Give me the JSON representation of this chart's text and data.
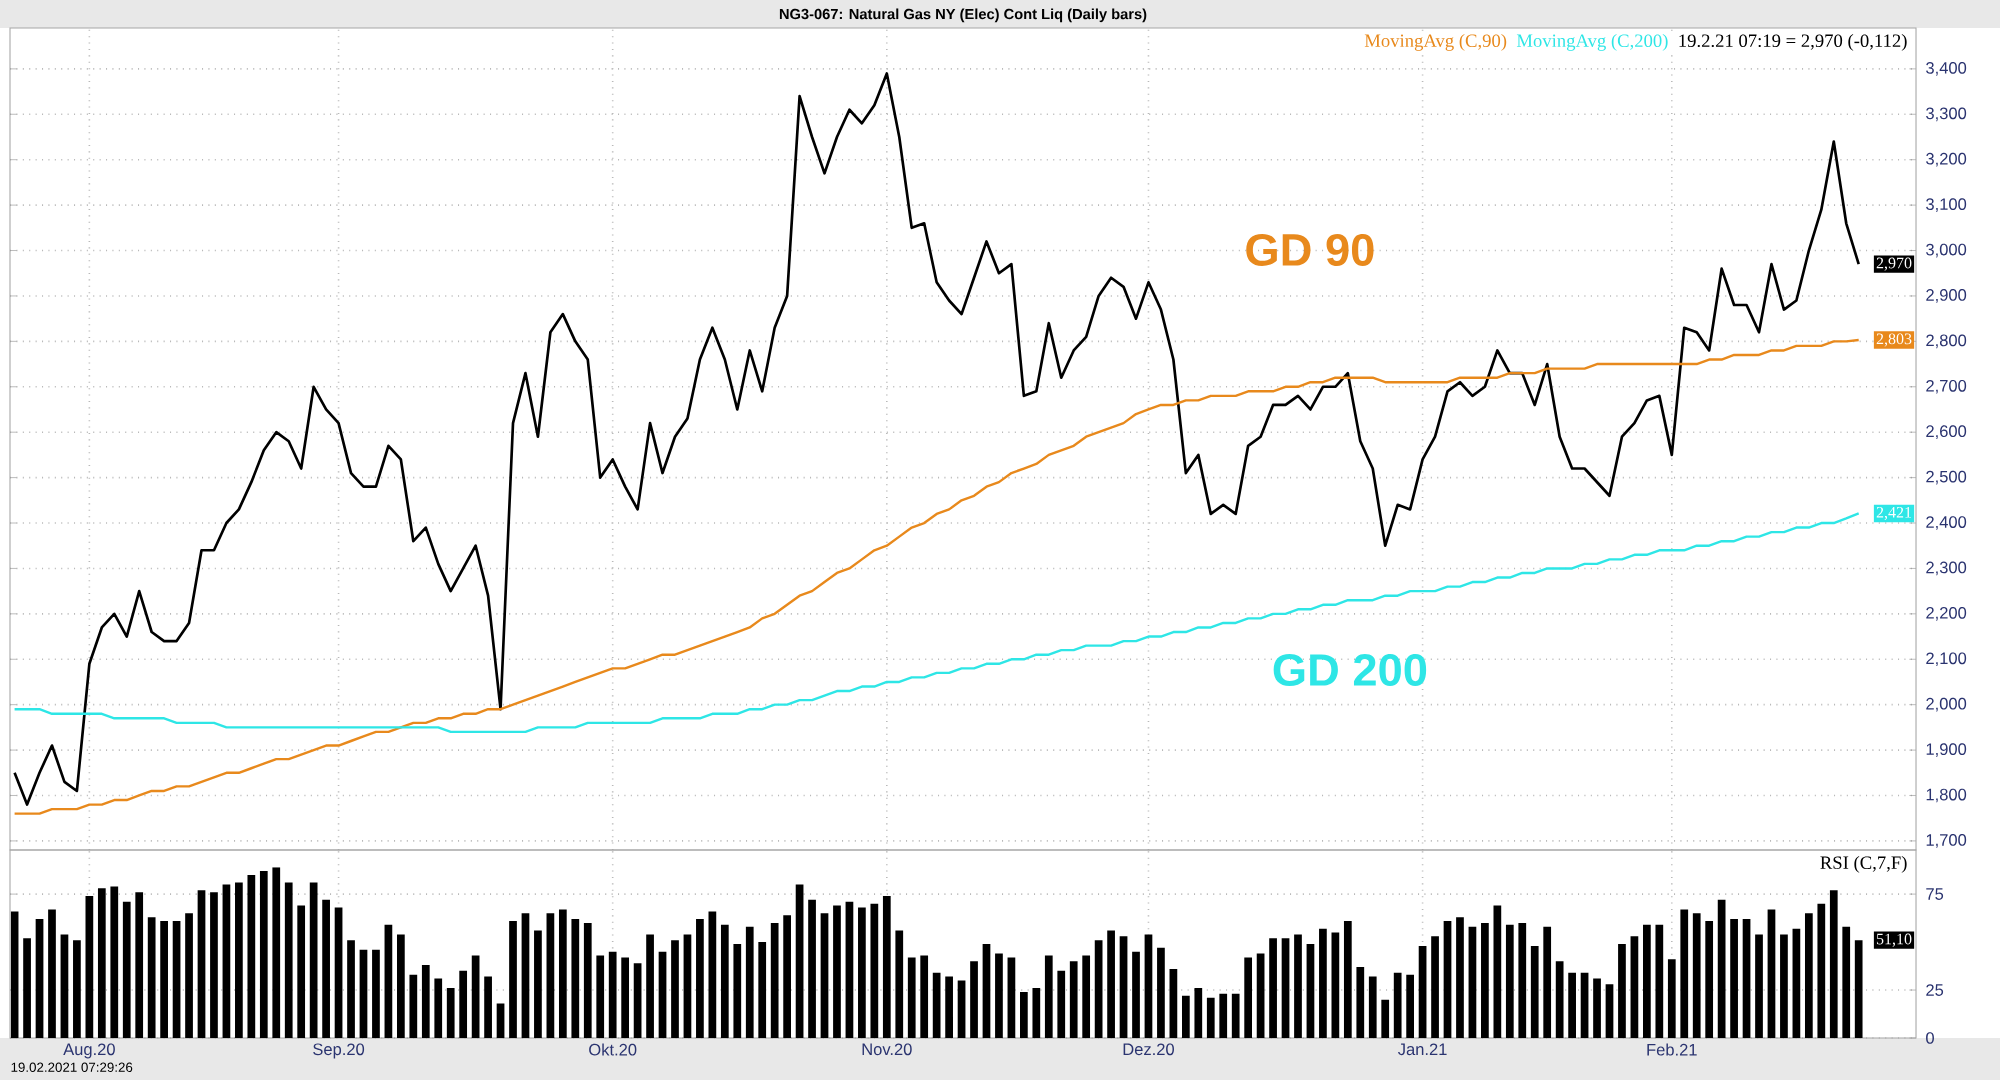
{
  "chart_data": [
    {
      "type": "line",
      "title": "NG3-067: Natural Gas NY (Elec) Cont Liq (Daily bars)",
      "categories": [
        null,
        null,
        null,
        null,
        null,
        null,
        null,
        null,
        null,
        null,
        null,
        null,
        null,
        null,
        null,
        null,
        null,
        null,
        null,
        null,
        null,
        null,
        null,
        null,
        null,
        null,
        null,
        null,
        null,
        null,
        null,
        null,
        null,
        null,
        null,
        null,
        null,
        null,
        null,
        null,
        null,
        null,
        null,
        null,
        null,
        null,
        null,
        null,
        null,
        null,
        null,
        null,
        null,
        null,
        null,
        null,
        null,
        null,
        null,
        null,
        null,
        null,
        null,
        null,
        null,
        null,
        null,
        null,
        null,
        null,
        null,
        null,
        null,
        null,
        null,
        null,
        null,
        null,
        null,
        null,
        null,
        null,
        null,
        null,
        null,
        null,
        null,
        null,
        null,
        null,
        null,
        null,
        null,
        null,
        null,
        null,
        null,
        null,
        null,
        null,
        null,
        null,
        null,
        null,
        null,
        null,
        null,
        null,
        null,
        null,
        null,
        null,
        null,
        null,
        null,
        null,
        null,
        null,
        null,
        null,
        null,
        null,
        null,
        null,
        null,
        null,
        null,
        null,
        null,
        null,
        null,
        null,
        null,
        null,
        null,
        null,
        null,
        null,
        null,
        null,
        null,
        null,
        null,
        null,
        null,
        null,
        null,
        null,
        null
      ],
      "series": [
        {
          "color": "#000000",
          "values": [
            1850,
            1780,
            1850,
            1910,
            1830,
            1810,
            2090,
            2170,
            2200,
            2150,
            2250,
            2160,
            2140,
            2140,
            2180,
            2340,
            2340,
            2400,
            2430,
            2490,
            2560,
            2600,
            2580,
            2520,
            2700,
            2650,
            2620,
            2510,
            2480,
            2480,
            2570,
            2540,
            2360,
            2390,
            2310,
            2250,
            2300,
            2350,
            2240,
            1990,
            2620,
            2730,
            2590,
            2820,
            2860,
            2800,
            2760,
            2500,
            2540,
            2480,
            2430,
            2620,
            2510,
            2590,
            2630,
            2760,
            2830,
            2760,
            2650,
            2780,
            2690,
            2830,
            2900,
            3340,
            3250,
            3170,
            3250,
            3310,
            3280,
            3320,
            3390,
            3250,
            3050,
            3060,
            2930,
            2890,
            2860,
            2940,
            3020,
            2950,
            2970,
            2680,
            2690,
            2840,
            2720,
            2780,
            2810,
            2900,
            2940,
            2920,
            2850,
            2930,
            2870,
            2760,
            2510,
            2550,
            2420,
            2440,
            2420,
            2570,
            2590,
            2660,
            2660,
            2680,
            2650,
            2700,
            2700,
            2730,
            2580,
            2520,
            2350,
            2440,
            2430,
            2540,
            2590,
            2690,
            2710,
            2680,
            2700,
            2780,
            2730,
            2730,
            2660,
            2750,
            2590,
            2520,
            2520,
            2490,
            2460,
            2590,
            2620,
            2670,
            2680,
            2550,
            2830,
            2820,
            2780,
            2960,
            2880,
            2880,
            2820,
            2970,
            2870,
            2890,
            3000,
            3090,
            3240,
            3060,
            2970
          ]
        },
        {
          "name": "MovingAvg (C,90)",
          "color": "#e8891c",
          "values": [
            1760,
            1760,
            1760,
            1770,
            1770,
            1770,
            1780,
            1780,
            1790,
            1790,
            1800,
            1810,
            1810,
            1820,
            1820,
            1830,
            1840,
            1850,
            1850,
            1860,
            1870,
            1880,
            1880,
            1890,
            1900,
            1910,
            1910,
            1920,
            1930,
            1940,
            1940,
            1950,
            1960,
            1960,
            1970,
            1970,
            1980,
            1980,
            1990,
            1990,
            2000,
            2010,
            2020,
            2030,
            2040,
            2050,
            2060,
            2070,
            2080,
            2080,
            2090,
            2100,
            2110,
            2110,
            2120,
            2130,
            2140,
            2150,
            2160,
            2170,
            2190,
            2200,
            2220,
            2240,
            2250,
            2270,
            2290,
            2300,
            2320,
            2340,
            2350,
            2370,
            2390,
            2400,
            2420,
            2430,
            2450,
            2460,
            2480,
            2490,
            2510,
            2520,
            2530,
            2550,
            2560,
            2570,
            2590,
            2600,
            2610,
            2620,
            2640,
            2650,
            2660,
            2660,
            2670,
            2670,
            2680,
            2680,
            2680,
            2690,
            2690,
            2690,
            2700,
            2700,
            2710,
            2710,
            2720,
            2720,
            2720,
            2720,
            2710,
            2710,
            2710,
            2710,
            2710,
            2710,
            2720,
            2720,
            2720,
            2720,
            2730,
            2730,
            2730,
            2740,
            2740,
            2740,
            2740,
            2750,
            2750,
            2750,
            2750,
            2750,
            2750,
            2750,
            2750,
            2750,
            2760,
            2760,
            2770,
            2770,
            2770,
            2780,
            2780,
            2790,
            2790,
            2790,
            2800,
            2800,
            2803
          ]
        },
        {
          "name": "MovingAvg (C,200)",
          "color": "#2ee6e6",
          "values": [
            1990,
            1990,
            1990,
            1980,
            1980,
            1980,
            1980,
            1980,
            1970,
            1970,
            1970,
            1970,
            1970,
            1960,
            1960,
            1960,
            1960,
            1950,
            1950,
            1950,
            1950,
            1950,
            1950,
            1950,
            1950,
            1950,
            1950,
            1950,
            1950,
            1950,
            1950,
            1950,
            1950,
            1950,
            1950,
            1940,
            1940,
            1940,
            1940,
            1940,
            1940,
            1940,
            1950,
            1950,
            1950,
            1950,
            1960,
            1960,
            1960,
            1960,
            1960,
            1960,
            1970,
            1970,
            1970,
            1970,
            1980,
            1980,
            1980,
            1990,
            1990,
            2000,
            2000,
            2010,
            2010,
            2020,
            2030,
            2030,
            2040,
            2040,
            2050,
            2050,
            2060,
            2060,
            2070,
            2070,
            2080,
            2080,
            2090,
            2090,
            2100,
            2100,
            2110,
            2110,
            2120,
            2120,
            2130,
            2130,
            2130,
            2140,
            2140,
            2150,
            2150,
            2160,
            2160,
            2170,
            2170,
            2180,
            2180,
            2190,
            2190,
            2200,
            2200,
            2210,
            2210,
            2220,
            2220,
            2230,
            2230,
            2230,
            2240,
            2240,
            2250,
            2250,
            2250,
            2260,
            2260,
            2270,
            2270,
            2280,
            2280,
            2290,
            2290,
            2300,
            2300,
            2300,
            2310,
            2310,
            2320,
            2320,
            2330,
            2330,
            2340,
            2340,
            2340,
            2350,
            2350,
            2360,
            2360,
            2370,
            2370,
            2380,
            2380,
            2390,
            2390,
            2400,
            2400,
            2410,
            2421
          ]
        }
      ],
      "ylim": [
        1680,
        3490
      ],
      "yticks": [
        {
          "value": 1700,
          "label": "1,700"
        },
        {
          "value": 1800,
          "label": "1,800"
        },
        {
          "value": 1900,
          "label": "1,900"
        },
        {
          "value": 2000,
          "label": "2,000"
        },
        {
          "value": 2100,
          "label": "2,100"
        },
        {
          "value": 2200,
          "label": "2,200"
        },
        {
          "value": 2300,
          "label": "2,300"
        },
        {
          "value": 2400,
          "label": "2,400"
        },
        {
          "value": 2500,
          "label": "2,500"
        },
        {
          "value": 2600,
          "label": "2,600"
        },
        {
          "value": 2700,
          "label": "2,700"
        },
        {
          "value": 2800,
          "label": "2,800"
        },
        {
          "value": 2900,
          "label": "2,900"
        },
        {
          "value": 3000,
          "label": "3,000"
        },
        {
          "value": 3100,
          "label": "3,100"
        },
        {
          "value": 3200,
          "label": "3,200"
        },
        {
          "value": 3300,
          "label": "3,300"
        },
        {
          "value": 3400,
          "label": "3,400"
        }
      ],
      "grid": true,
      "tick_labels": "y",
      "legend": "top right",
      "annotations": [
        "19.2.21 07:19 = 2,970 (-0,112)",
        "GD 90",
        "GD 200",
        "2,970",
        "2,803",
        "2,421"
      ]
    },
    {
      "type": "bar",
      "categories": [
        null,
        null,
        null,
        null,
        null,
        null,
        "Aug.20",
        null,
        null,
        null,
        null,
        null,
        null,
        null,
        null,
        null,
        null,
        null,
        null,
        null,
        null,
        null,
        null,
        null,
        null,
        null,
        "Sep.20",
        null,
        null,
        null,
        null,
        null,
        null,
        null,
        null,
        null,
        null,
        null,
        null,
        null,
        null,
        null,
        null,
        null,
        null,
        null,
        null,
        null,
        "Okt.20",
        null,
        null,
        null,
        null,
        null,
        null,
        null,
        null,
        null,
        null,
        null,
        null,
        null,
        null,
        null,
        null,
        null,
        null,
        null,
        null,
        null,
        "Nov.20",
        null,
        null,
        null,
        null,
        null,
        null,
        null,
        null,
        null,
        null,
        null,
        null,
        null,
        null,
        null,
        null,
        null,
        null,
        null,
        null,
        "Dez.20",
        null,
        null,
        null,
        null,
        null,
        null,
        null,
        null,
        null,
        null,
        null,
        null,
        null,
        null,
        null,
        null,
        null,
        null,
        null,
        null,
        null,
        "Jan.21",
        null,
        null,
        null,
        null,
        null,
        null,
        null,
        null,
        null,
        null,
        null,
        null,
        null,
        null,
        null,
        null,
        null,
        null,
        null,
        "Feb.21",
        null,
        null,
        null,
        null,
        null,
        null,
        null,
        null,
        null,
        null,
        null,
        null,
        null,
        null,
        null
      ],
      "series": [
        {
          "name": "RSI (C,7,F)",
          "color": "#000000",
          "values": [
            66,
            52,
            62,
            67,
            54,
            51,
            74,
            78,
            79,
            71,
            76,
            63,
            61,
            61,
            65,
            77,
            76,
            80,
            81,
            85,
            87,
            89,
            81,
            69,
            81,
            72,
            68,
            51,
            46,
            46,
            59,
            54,
            33,
            38,
            31,
            26,
            35,
            43,
            32,
            18,
            61,
            65,
            56,
            65,
            67,
            62,
            60,
            43,
            45,
            42,
            39,
            54,
            45,
            51,
            54,
            62,
            66,
            59,
            49,
            58,
            50,
            60,
            64,
            80,
            72,
            65,
            69,
            71,
            68,
            70,
            74,
            56,
            42,
            43,
            34,
            32,
            30,
            40,
            49,
            44,
            42,
            24,
            26,
            43,
            35,
            40,
            43,
            51,
            56,
            53,
            45,
            54,
            47,
            36,
            22,
            26,
            21,
            23,
            23,
            42,
            44,
            52,
            52,
            54,
            49,
            57,
            55,
            61,
            37,
            32,
            20,
            34,
            33,
            48,
            53,
            61,
            63,
            58,
            60,
            69,
            59,
            60,
            48,
            58,
            40,
            34,
            34,
            31,
            28,
            49,
            53,
            59,
            59,
            41,
            67,
            65,
            61,
            72,
            62,
            62,
            54,
            67,
            54,
            57,
            65,
            70,
            77,
            58,
            51
          ]
        }
      ],
      "ylim": [
        0,
        98
      ],
      "yticks": [
        0,
        25,
        75
      ],
      "grid": true,
      "legend": "top right",
      "annotations": [
        "51,10",
        "19.02.2021 07:29:26"
      ]
    }
  ]
}
